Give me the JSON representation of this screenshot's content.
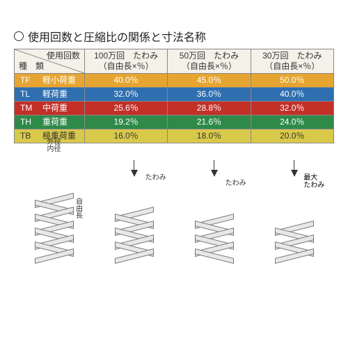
{
  "title": "使用回数と圧縮比の関係と寸法名称",
  "header": {
    "type_top": "使用回数",
    "type_bottom": "種　類",
    "col1_a": "100万回　たわみ",
    "col1_b": "（自由長×％）",
    "col2_a": "50万回　たわみ",
    "col2_b": "（自由長×％）",
    "col3_a": "30万回　たわみ",
    "col3_b": "（自由長×％）"
  },
  "rows": [
    {
      "code": "TF",
      "name": "軽小荷重",
      "v1": "40.0％",
      "v2": "45.0％",
      "v3": "50.0％",
      "bg": "#e6a530",
      "fg": "#ffffff"
    },
    {
      "code": "TL",
      "name": "軽荷重",
      "v1": "32.0％",
      "v2": "36.0％",
      "v3": "40.0％",
      "bg": "#2f6fb0",
      "fg": "#ffffff"
    },
    {
      "code": "TM",
      "name": "中荷重",
      "v1": "25.6％",
      "v2": "28.8％",
      "v3": "32.0％",
      "bg": "#c23028",
      "fg": "#ffffff"
    },
    {
      "code": "TH",
      "name": "重荷重",
      "v1": "19.2％",
      "v2": "21.6％",
      "v3": "24.0％",
      "bg": "#2f8a4a",
      "fg": "#ffffff"
    },
    {
      "code": "TB",
      "name": "極重荷重",
      "v1": "16.0％",
      "v2": "18.0％",
      "v3": "20.0％",
      "bg": "#d9c94a",
      "fg": "#333333"
    }
  ],
  "diagram_labels": {
    "outer_dia": "外径",
    "inner_dia": "内径",
    "free_len": "自由長",
    "deflection": "たわみ",
    "max_deflection_a": "最大",
    "max_deflection_b": "たわみ"
  },
  "spring_heights": {
    "d1_coils": 9,
    "d2_coils": 7,
    "d3_coils": 6,
    "d4_coils": 5
  }
}
